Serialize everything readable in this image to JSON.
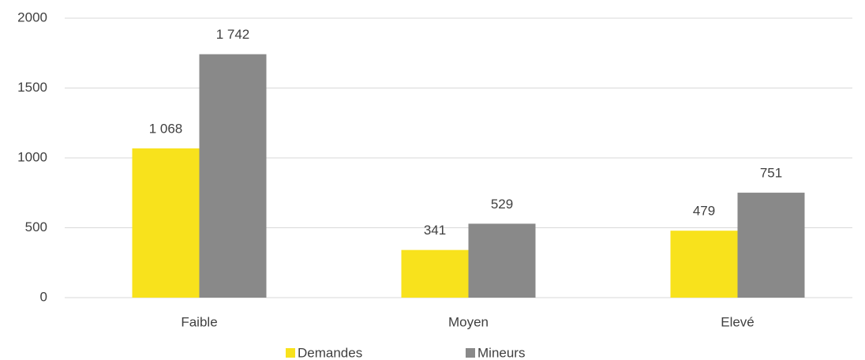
{
  "chart_data": {
    "type": "bar",
    "categories": [
      "Faible",
      "Moyen",
      "Elevé"
    ],
    "series": [
      {
        "name": "Demandes",
        "color": "#f8e21c",
        "values": [
          1068,
          341,
          479
        ],
        "value_labels": [
          "1 068",
          "341",
          "479"
        ]
      },
      {
        "name": "Mineurs",
        "color": "#898989",
        "values": [
          1742,
          529,
          751
        ],
        "value_labels": [
          "1 742",
          "529",
          "751"
        ]
      }
    ],
    "ylim": [
      0,
      2000
    ],
    "yticks": [
      0,
      500,
      1000,
      1500,
      2000
    ],
    "grid": true,
    "legend": "bottom"
  }
}
